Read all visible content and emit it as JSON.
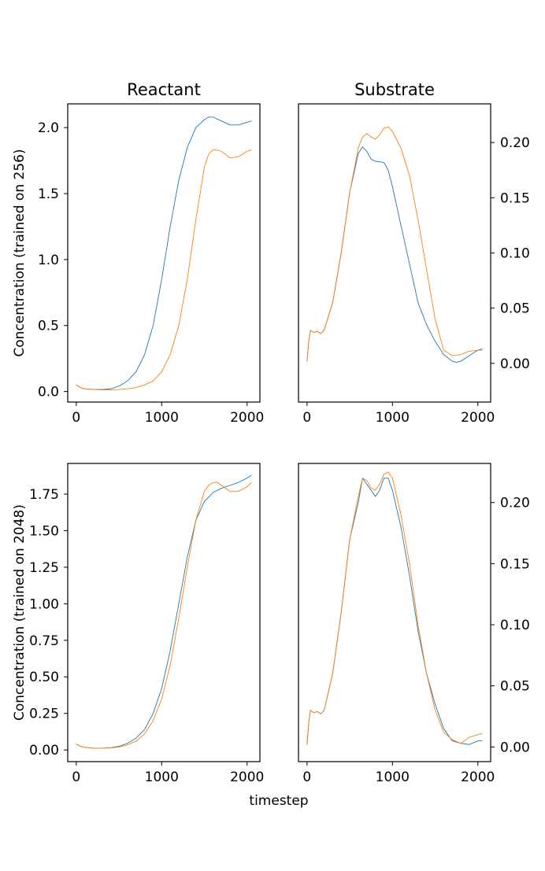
{
  "figure": {
    "xlabel": "timestep"
  },
  "colors": {
    "series_1": "#1f77b4",
    "series_2": "#ff7f0e"
  },
  "chart_data": [
    {
      "type": "line",
      "id": "top-left",
      "title": "Reactant",
      "ylabel": "Concentration (trained on 256)",
      "xlim": [
        -100,
        2150
      ],
      "ylim": [
        -0.08,
        2.18
      ],
      "xticks": [
        0,
        1000,
        2000
      ],
      "yticks": [
        0.0,
        0.5,
        1.0,
        1.5,
        2.0
      ],
      "ytick_labels": [
        "0.0",
        "0.5",
        "1.0",
        "1.5",
        "2.0"
      ],
      "y_axis_side": "left",
      "series": [
        {
          "color": "#1f77b4",
          "x": [
            0,
            50,
            100,
            200,
            300,
            400,
            500,
            600,
            700,
            800,
            900,
            1000,
            1100,
            1200,
            1300,
            1400,
            1500,
            1550,
            1600,
            1700,
            1800,
            1900,
            2000,
            2050
          ],
          "y": [
            0.05,
            0.03,
            0.02,
            0.015,
            0.015,
            0.02,
            0.04,
            0.08,
            0.15,
            0.28,
            0.5,
            0.85,
            1.25,
            1.6,
            1.85,
            2.0,
            2.06,
            2.08,
            2.08,
            2.05,
            2.02,
            2.02,
            2.04,
            2.05
          ]
        },
        {
          "color": "#ff7f0e",
          "x": [
            0,
            50,
            100,
            200,
            300,
            400,
            500,
            600,
            700,
            800,
            900,
            1000,
            1100,
            1200,
            1300,
            1400,
            1500,
            1550,
            1600,
            1650,
            1700,
            1800,
            1900,
            2000,
            2050
          ],
          "y": [
            0.05,
            0.03,
            0.02,
            0.015,
            0.012,
            0.012,
            0.015,
            0.02,
            0.03,
            0.05,
            0.08,
            0.15,
            0.28,
            0.5,
            0.85,
            1.3,
            1.7,
            1.8,
            1.83,
            1.83,
            1.82,
            1.77,
            1.78,
            1.82,
            1.83
          ]
        }
      ]
    },
    {
      "type": "line",
      "id": "top-right",
      "title": "Substrate",
      "ylabel": "",
      "xlim": [
        -100,
        2150
      ],
      "ylim": [
        -0.035,
        0.235
      ],
      "xticks": [
        0,
        1000,
        2000
      ],
      "yticks": [
        0.0,
        0.05,
        0.1,
        0.15,
        0.2
      ],
      "ytick_labels": [
        "0.00",
        "0.05",
        "0.10",
        "0.15",
        "0.20"
      ],
      "y_axis_side": "right",
      "series": [
        {
          "color": "#1f77b4",
          "x": [
            0,
            20,
            40,
            80,
            120,
            160,
            200,
            300,
            400,
            500,
            600,
            650,
            700,
            750,
            800,
            900,
            950,
            1000,
            1100,
            1200,
            1300,
            1400,
            1500,
            1600,
            1700,
            1750,
            1800,
            1900,
            2000,
            2050
          ],
          "y": [
            0.002,
            0.02,
            0.03,
            0.028,
            0.029,
            0.027,
            0.03,
            0.055,
            0.1,
            0.155,
            0.19,
            0.196,
            0.192,
            0.185,
            0.183,
            0.182,
            0.175,
            0.16,
            0.125,
            0.09,
            0.055,
            0.035,
            0.02,
            0.008,
            0.002,
            0.001,
            0.002,
            0.007,
            0.012,
            0.013
          ]
        },
        {
          "color": "#ff7f0e",
          "x": [
            0,
            20,
            40,
            80,
            120,
            160,
            200,
            300,
            400,
            500,
            600,
            650,
            700,
            750,
            800,
            850,
            900,
            950,
            1000,
            1100,
            1200,
            1300,
            1400,
            1500,
            1600,
            1700,
            1800,
            1900,
            2000,
            2050
          ],
          "y": [
            0.002,
            0.02,
            0.03,
            0.028,
            0.029,
            0.027,
            0.03,
            0.055,
            0.1,
            0.155,
            0.195,
            0.205,
            0.208,
            0.205,
            0.203,
            0.207,
            0.213,
            0.214,
            0.21,
            0.195,
            0.17,
            0.13,
            0.085,
            0.04,
            0.012,
            0.007,
            0.008,
            0.011,
            0.012,
            0.012
          ]
        }
      ]
    },
    {
      "type": "line",
      "id": "bottom-left",
      "title": "",
      "ylabel": "Concentration (trained on 2048)",
      "xlim": [
        -100,
        2150
      ],
      "ylim": [
        -0.08,
        1.96
      ],
      "xticks": [
        0,
        1000,
        2000
      ],
      "yticks": [
        0.0,
        0.25,
        0.5,
        0.75,
        1.0,
        1.25,
        1.5,
        1.75
      ],
      "ytick_labels": [
        "0.00",
        "0.25",
        "0.50",
        "0.75",
        "1.00",
        "1.25",
        "1.50",
        "1.75"
      ],
      "y_axis_side": "left",
      "series": [
        {
          "color": "#1f77b4",
          "x": [
            0,
            50,
            100,
            200,
            300,
            400,
            500,
            600,
            700,
            800,
            900,
            1000,
            1100,
            1200,
            1300,
            1400,
            1500,
            1600,
            1700,
            1800,
            1900,
            2000,
            2050
          ],
          "y": [
            0.04,
            0.025,
            0.018,
            0.012,
            0.012,
            0.015,
            0.025,
            0.045,
            0.08,
            0.14,
            0.25,
            0.42,
            0.68,
            1.0,
            1.32,
            1.57,
            1.7,
            1.76,
            1.79,
            1.81,
            1.83,
            1.86,
            1.88
          ]
        },
        {
          "color": "#ff7f0e",
          "x": [
            0,
            50,
            100,
            200,
            300,
            400,
            500,
            600,
            700,
            800,
            900,
            1000,
            1100,
            1200,
            1300,
            1400,
            1500,
            1550,
            1600,
            1650,
            1700,
            1800,
            1900,
            2000,
            2050
          ],
          "y": [
            0.04,
            0.025,
            0.018,
            0.012,
            0.012,
            0.014,
            0.02,
            0.035,
            0.06,
            0.11,
            0.2,
            0.35,
            0.58,
            0.9,
            1.25,
            1.57,
            1.77,
            1.81,
            1.83,
            1.83,
            1.81,
            1.77,
            1.77,
            1.8,
            1.83
          ]
        }
      ]
    },
    {
      "type": "line",
      "id": "bottom-right",
      "title": "",
      "ylabel": "",
      "xlim": [
        -100,
        2150
      ],
      "ylim": [
        -0.012,
        0.232
      ],
      "xticks": [
        0,
        1000,
        2000
      ],
      "yticks": [
        0.0,
        0.05,
        0.1,
        0.15,
        0.2
      ],
      "ytick_labels": [
        "0.00",
        "0.05",
        "0.10",
        "0.15",
        "0.20"
      ],
      "y_axis_side": "right",
      "series": [
        {
          "color": "#1f77b4",
          "x": [
            0,
            20,
            40,
            80,
            120,
            160,
            200,
            300,
            400,
            500,
            600,
            650,
            700,
            750,
            800,
            850,
            900,
            950,
            1000,
            1100,
            1200,
            1300,
            1400,
            1500,
            1600,
            1700,
            1800,
            1900,
            2000,
            2050
          ],
          "y": [
            0.002,
            0.02,
            0.03,
            0.028,
            0.029,
            0.027,
            0.03,
            0.06,
            0.11,
            0.17,
            0.2,
            0.22,
            0.215,
            0.21,
            0.205,
            0.21,
            0.22,
            0.22,
            0.21,
            0.18,
            0.14,
            0.095,
            0.06,
            0.035,
            0.015,
            0.005,
            0.003,
            0.002,
            0.005,
            0.005
          ]
        },
        {
          "color": "#ff7f0e",
          "x": [
            0,
            20,
            40,
            80,
            120,
            160,
            200,
            300,
            400,
            500,
            600,
            650,
            700,
            750,
            800,
            850,
            900,
            950,
            1000,
            1100,
            1200,
            1300,
            1400,
            1500,
            1600,
            1700,
            1800,
            1900,
            2000,
            2050
          ],
          "y": [
            0.002,
            0.02,
            0.03,
            0.028,
            0.029,
            0.027,
            0.03,
            0.06,
            0.11,
            0.17,
            0.205,
            0.22,
            0.218,
            0.212,
            0.21,
            0.215,
            0.223,
            0.225,
            0.22,
            0.19,
            0.15,
            0.1,
            0.06,
            0.03,
            0.012,
            0.006,
            0.003,
            0.008,
            0.01,
            0.011
          ]
        }
      ]
    }
  ]
}
